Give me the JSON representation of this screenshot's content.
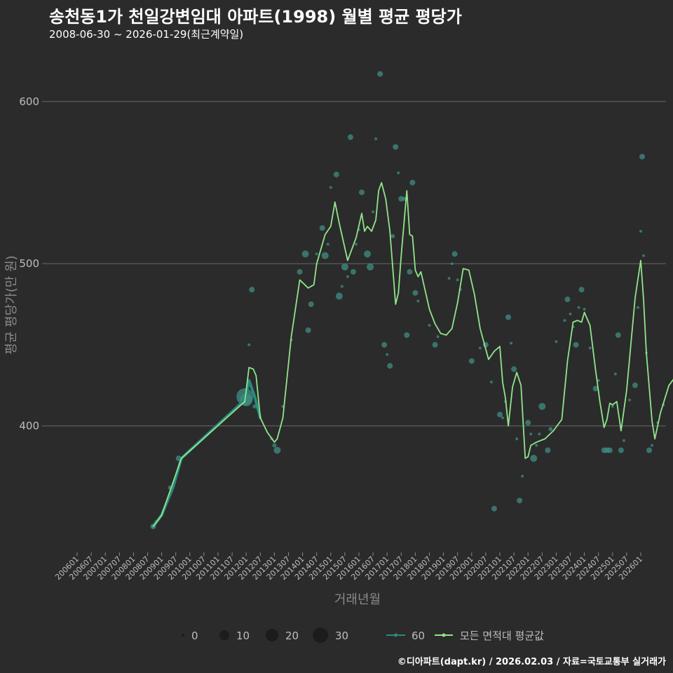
{
  "header": {
    "title": "송천동1가 천일강변임대 아파트(1998) 월별 평균 평당가",
    "subtitle": "2008-06-30 ~ 2026-01-29(최근계약일)"
  },
  "footer": {
    "credit": "©디아파트(dapt.kr) / 2026.02.03 / 자료=국토교통부 실거래가"
  },
  "colors": {
    "background": "#2b2b2b",
    "avg_line": "#90e58a",
    "area_line": "#2a8a80",
    "points": "#3f8d84"
  },
  "chart_data": {
    "type": "scatter",
    "title": "송천동1가 천일강변임대 아파트(1998) 월별 평균 평당가",
    "xlabel": "거래년월",
    "ylabel": "평균 평당가(만 원)",
    "ylim": [
      322,
      628
    ],
    "grid": true,
    "yticks": [
      400,
      500,
      600
    ],
    "xticks": [
      "200601",
      "200607",
      "200701",
      "200707",
      "200801",
      "200807",
      "200901",
      "200907",
      "201001",
      "201007",
      "201101",
      "201107",
      "201201",
      "201207",
      "201301",
      "201307",
      "201401",
      "201407",
      "201501",
      "201507",
      "201601",
      "201607",
      "201701",
      "201707",
      "201801",
      "201807",
      "201901",
      "201907",
      "202001",
      "202007",
      "202101",
      "202107",
      "202201",
      "202207",
      "202301",
      "202307",
      "202401",
      "202407",
      "202501",
      "202507",
      "202601"
    ],
    "legend": {
      "size_title": "",
      "size_values": [
        0,
        10,
        20,
        30
      ],
      "area_label": "60",
      "avg_label": "모든 면적대 평균값"
    },
    "points": [
      [
        2008.7,
        338,
        4
      ],
      [
        2008.8,
        341,
        2
      ],
      [
        2009.3,
        362,
        3
      ],
      [
        2009.6,
        380,
        4
      ],
      [
        2011.95,
        418,
        12
      ],
      [
        2012.0,
        416,
        9
      ],
      [
        2012.1,
        450,
        2
      ],
      [
        2012.2,
        484,
        4
      ],
      [
        2012.3,
        412,
        3
      ],
      [
        2012.9,
        392,
        2
      ],
      [
        2013.0,
        388,
        3
      ],
      [
        2013.1,
        385,
        5
      ],
      [
        2013.3,
        412,
        2
      ],
      [
        2013.6,
        453,
        2
      ],
      [
        2013.9,
        495,
        4
      ],
      [
        2014.1,
        506,
        5
      ],
      [
        2014.2,
        459,
        4
      ],
      [
        2014.3,
        475,
        4
      ],
      [
        2014.5,
        506,
        2
      ],
      [
        2014.7,
        522,
        4
      ],
      [
        2014.8,
        505,
        5
      ],
      [
        2014.9,
        512,
        2
      ],
      [
        2015.0,
        547,
        2
      ],
      [
        2015.2,
        555,
        4
      ],
      [
        2015.3,
        480,
        5
      ],
      [
        2015.4,
        486,
        2
      ],
      [
        2015.5,
        498,
        5
      ],
      [
        2015.6,
        492,
        2
      ],
      [
        2015.7,
        578,
        4
      ],
      [
        2015.8,
        495,
        4
      ],
      [
        2015.9,
        512,
        2
      ],
      [
        2016.0,
        521,
        2
      ],
      [
        2016.1,
        544,
        4
      ],
      [
        2016.3,
        506,
        5
      ],
      [
        2016.4,
        498,
        5
      ],
      [
        2016.5,
        532,
        2
      ],
      [
        2016.6,
        577,
        2
      ],
      [
        2016.75,
        617,
        4
      ],
      [
        2016.9,
        450,
        4
      ],
      [
        2017.0,
        444,
        2
      ],
      [
        2017.1,
        437,
        4
      ],
      [
        2017.2,
        517,
        3
      ],
      [
        2017.3,
        572,
        4
      ],
      [
        2017.4,
        556,
        2
      ],
      [
        2017.5,
        540,
        4
      ],
      [
        2017.6,
        540,
        3
      ],
      [
        2017.7,
        456,
        4
      ],
      [
        2017.8,
        495,
        4
      ],
      [
        2017.9,
        550,
        4
      ],
      [
        2018.0,
        482,
        4
      ],
      [
        2018.1,
        477,
        2
      ],
      [
        2018.5,
        462,
        2
      ],
      [
        2018.7,
        450,
        4
      ],
      [
        2018.8,
        455,
        2
      ],
      [
        2019.2,
        491,
        2
      ],
      [
        2019.3,
        500,
        2
      ],
      [
        2019.4,
        506,
        4
      ],
      [
        2019.5,
        490,
        2
      ],
      [
        2019.6,
        484,
        2
      ],
      [
        2020.0,
        440,
        4
      ],
      [
        2020.3,
        448,
        2
      ],
      [
        2020.5,
        450,
        4
      ],
      [
        2020.7,
        427,
        2
      ],
      [
        2020.8,
        349,
        4
      ],
      [
        2021.0,
        407,
        4
      ],
      [
        2021.1,
        405,
        2
      ],
      [
        2021.2,
        415,
        2
      ],
      [
        2021.3,
        467,
        4
      ],
      [
        2021.4,
        451,
        2
      ],
      [
        2021.5,
        435,
        4
      ],
      [
        2021.6,
        392,
        2
      ],
      [
        2021.7,
        354,
        4
      ],
      [
        2021.8,
        369,
        2
      ],
      [
        2022.0,
        402,
        4
      ],
      [
        2022.1,
        395,
        2
      ],
      [
        2022.2,
        380,
        5
      ],
      [
        2022.3,
        388,
        2
      ],
      [
        2022.4,
        395,
        2
      ],
      [
        2022.5,
        412,
        5
      ],
      [
        2022.7,
        385,
        4
      ],
      [
        2022.8,
        398,
        3
      ],
      [
        2023.0,
        452,
        2
      ],
      [
        2023.3,
        465,
        2
      ],
      [
        2023.4,
        478,
        4
      ],
      [
        2023.5,
        469,
        2
      ],
      [
        2023.6,
        461,
        2
      ],
      [
        2023.7,
        450,
        4
      ],
      [
        2023.8,
        473,
        2
      ],
      [
        2023.9,
        484,
        4
      ],
      [
        2024.0,
        472,
        2
      ],
      [
        2024.2,
        448,
        2
      ],
      [
        2024.4,
        423,
        4
      ],
      [
        2024.5,
        428,
        2
      ],
      [
        2024.7,
        385,
        4
      ],
      [
        2024.8,
        385,
        4
      ],
      [
        2024.9,
        385,
        4
      ],
      [
        2025.0,
        412,
        2
      ],
      [
        2025.1,
        432,
        2
      ],
      [
        2025.2,
        456,
        4
      ],
      [
        2025.3,
        385,
        4
      ],
      [
        2025.4,
        391,
        2
      ],
      [
        2025.6,
        416,
        2
      ],
      [
        2025.8,
        425,
        4
      ],
      [
        2025.9,
        473,
        2
      ],
      [
        2026.0,
        520,
        2
      ],
      [
        2026.05,
        566,
        4
      ],
      [
        2026.1,
        505,
        2
      ],
      [
        2026.2,
        445,
        2
      ],
      [
        2026.3,
        385,
        4
      ],
      [
        2026.4,
        388,
        2
      ],
      [
        2026.6,
        402,
        2
      ],
      [
        2026.8,
        413,
        2
      ],
      [
        2027.3,
        432,
        4
      ]
    ],
    "series": [
      {
        "name": "60",
        "x": [
          2008.7,
          2009.0,
          2009.4,
          2009.7,
          2011.95,
          2012.1,
          2012.3,
          2012.5
        ],
        "y": [
          338,
          345,
          362,
          380,
          416,
          428,
          418,
          405
        ]
      },
      {
        "name": "모든 면적대 평균값",
        "x": [
          2008.7,
          2009.0,
          2009.2,
          2009.4,
          2009.7,
          2011.95,
          2012.1,
          2012.25,
          2012.35,
          2012.5,
          2012.75,
          2013.0,
          2013.1,
          2013.3,
          2013.6,
          2013.9,
          2014.2,
          2014.4,
          2014.5,
          2014.8,
          2015.0,
          2015.15,
          2015.3,
          2015.6,
          2015.9,
          2016.1,
          2016.2,
          2016.3,
          2016.45,
          2016.6,
          2016.7,
          2016.8,
          2016.95,
          2017.1,
          2017.3,
          2017.4,
          2017.5,
          2017.7,
          2017.8,
          2017.9,
          2018.0,
          2018.1,
          2018.2,
          2018.5,
          2018.7,
          2018.9,
          2019.1,
          2019.3,
          2019.5,
          2019.7,
          2019.9,
          2020.1,
          2020.3,
          2020.6,
          2020.8,
          2021.0,
          2021.1,
          2021.2,
          2021.3,
          2021.45,
          2021.6,
          2021.75,
          2021.9,
          2022.0,
          2022.1,
          2022.3,
          2022.6,
          2022.9,
          2023.2,
          2023.4,
          2023.6,
          2023.75,
          2023.9,
          2024.0,
          2024.2,
          2024.4,
          2024.55,
          2024.7,
          2024.8,
          2024.9,
          2025.0,
          2025.15,
          2025.3,
          2025.5,
          2025.8,
          2026.0,
          2026.1,
          2026.2,
          2026.4,
          2026.5,
          2026.7,
          2027.0,
          2027.3
        ],
        "y": [
          338,
          345,
          355,
          365,
          380,
          415,
          436,
          435,
          431,
          405,
          396,
          390,
          392,
          405,
          455,
          490,
          485,
          487,
          500,
          518,
          523,
          538,
          525,
          502,
          516,
          531,
          520,
          523,
          520,
          527,
          545,
          550,
          540,
          520,
          475,
          482,
          505,
          545,
          518,
          517,
          496,
          492,
          495,
          472,
          463,
          457,
          456,
          460,
          476,
          497,
          496,
          481,
          460,
          441,
          446,
          449,
          427,
          417,
          400,
          424,
          433,
          425,
          380,
          381,
          388,
          390,
          392,
          397,
          404,
          440,
          464,
          465,
          464,
          470,
          462,
          434,
          415,
          399,
          404,
          414,
          413,
          415,
          397,
          422,
          479,
          502,
          478,
          445,
          403,
          392,
          408,
          425,
          432
        ]
      }
    ]
  }
}
